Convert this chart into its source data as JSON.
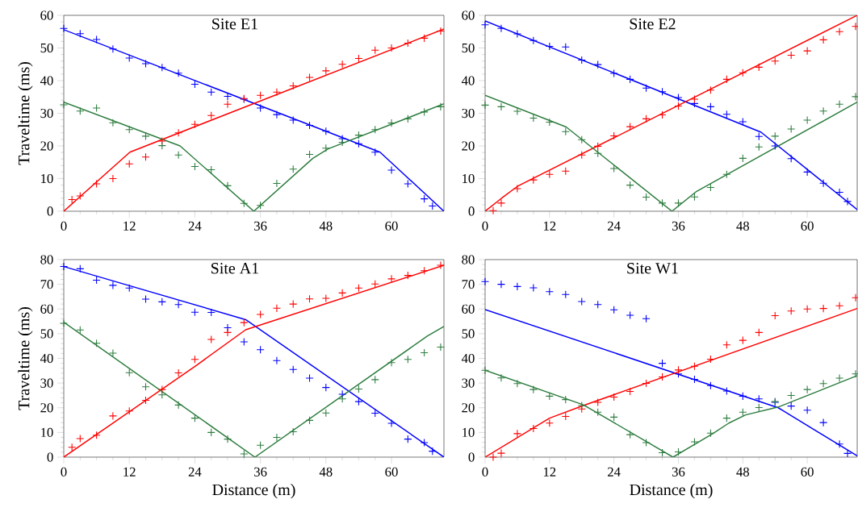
{
  "chart_data": [
    {
      "type": "line",
      "title": "Site E1",
      "ylabel": "Traveltime (ms)",
      "xlim": [
        0,
        69.6
      ],
      "ylim": [
        0,
        60
      ],
      "xticks": [
        0,
        12,
        24,
        36,
        48,
        60
      ],
      "yticks": [
        0,
        10,
        20,
        30,
        40,
        50,
        60
      ],
      "grid": false,
      "series": [
        {
          "color": "#0000ff",
          "x": [
            0,
            57.9,
            69.6
          ],
          "values": [
            55.6,
            18.1,
            0
          ]
        },
        {
          "color": "#ff0000",
          "x": [
            0,
            12.1,
            69.6
          ],
          "values": [
            0,
            18.1,
            55.8
          ]
        },
        {
          "color": "#2e7d3f",
          "x": [
            0,
            21.3,
            34.8,
            45.6,
            48.4,
            69.6
          ],
          "values": [
            33.4,
            20,
            0,
            16.2,
            19.1,
            32.9
          ]
        },
        {
          "type": "scatter",
          "marker": "cross",
          "color": "#0000ff",
          "x": [
            0,
            3,
            6,
            9,
            12,
            15,
            18,
            21,
            24,
            27,
            30,
            33,
            36,
            39,
            42,
            45,
            48,
            51,
            54,
            57,
            60,
            63,
            66,
            67.5
          ],
          "values": [
            56,
            54.4,
            52.6,
            49.7,
            46.9,
            45.2,
            44,
            42.3,
            38.9,
            36.5,
            35.2,
            34.3,
            31.6,
            29.6,
            27.9,
            26.3,
            24.5,
            22.2,
            20.7,
            18.1,
            12.6,
            8.4,
            3.8,
            1.6
          ]
        },
        {
          "type": "scatter",
          "marker": "cross",
          "color": "#ff0000",
          "x": [
            1.5,
            3,
            6,
            9,
            12,
            15,
            18,
            21,
            24,
            27,
            30,
            33,
            36,
            39,
            42,
            45,
            48,
            51,
            54,
            57,
            60,
            63,
            66,
            69
          ],
          "values": [
            3.6,
            4.7,
            8.4,
            10,
            14.5,
            16.6,
            21.5,
            24,
            26.6,
            29.3,
            32.8,
            34.5,
            35.5,
            36.5,
            38.4,
            41,
            43,
            45,
            46.8,
            49.3,
            50,
            51.5,
            53,
            55.2
          ]
        },
        {
          "type": "scatter",
          "marker": "cross",
          "color": "#2e7d3f",
          "x": [
            0,
            3,
            6,
            9,
            12,
            15,
            18,
            21,
            24,
            27,
            30,
            33,
            36,
            39,
            42,
            45,
            48,
            51,
            54,
            57,
            60,
            63,
            66,
            69
          ],
          "values": [
            32.6,
            30.7,
            31.6,
            27.1,
            25,
            23,
            20.1,
            17.2,
            13.7,
            12.7,
            7.8,
            2.4,
            1.8,
            8.5,
            12.9,
            17.4,
            19.3,
            21.1,
            23.3,
            25,
            27,
            28.3,
            30.4,
            32
          ]
        }
      ]
    },
    {
      "type": "line",
      "title": "Site E2",
      "xlim": [
        0,
        69.3
      ],
      "ylim": [
        0,
        60
      ],
      "xticks": [
        0,
        12,
        24,
        36,
        48,
        60
      ],
      "yticks": [
        0,
        10,
        20,
        30,
        40,
        50,
        60
      ],
      "grid": false,
      "series": [
        {
          "color": "#0000ff",
          "x": [
            0,
            51.4,
            69.3
          ],
          "values": [
            58.3,
            24.2,
            0.5
          ]
        },
        {
          "color": "#ff0000",
          "x": [
            0,
            3,
            6,
            69.3
          ],
          "values": [
            0,
            3.9,
            7.6,
            60
          ]
        },
        {
          "color": "#2e7d3f",
          "x": [
            0,
            15.1,
            34.8,
            39.4,
            69.3
          ],
          "values": [
            35.5,
            25.8,
            0,
            6.1,
            33.4
          ]
        },
        {
          "type": "scatter",
          "marker": "cross",
          "color": "#0000ff",
          "x": [
            0,
            3,
            6,
            9,
            12,
            15,
            18,
            21,
            24,
            27,
            30,
            33,
            36,
            39,
            42,
            45,
            48,
            51,
            54,
            57,
            60,
            63,
            66,
            67.5
          ],
          "values": [
            57.1,
            56,
            54.3,
            52.3,
            50.5,
            50.3,
            46.3,
            44.9,
            42.2,
            40.4,
            37.7,
            36.6,
            34.8,
            33,
            32,
            29.7,
            27.4,
            22.9,
            20,
            16.1,
            12,
            8.6,
            5.8,
            3
          ]
        },
        {
          "type": "scatter",
          "marker": "cross",
          "color": "#ff0000",
          "x": [
            1.5,
            3,
            6,
            9,
            12,
            15,
            18,
            21,
            24,
            27,
            30,
            33,
            36,
            39,
            42,
            45,
            48,
            51,
            54,
            57,
            60,
            63,
            66,
            69
          ],
          "values": [
            0.2,
            2.5,
            6.9,
            9.6,
            11.3,
            12.3,
            17.2,
            19.9,
            23.1,
            25.9,
            28.3,
            29.5,
            32.2,
            34.3,
            37.1,
            40.4,
            42.4,
            44.1,
            46,
            47.8,
            49.1,
            52.5,
            55,
            56.6
          ]
        },
        {
          "type": "scatter",
          "marker": "cross",
          "color": "#2e7d3f",
          "x": [
            0,
            3,
            6,
            9,
            12,
            15,
            18,
            21,
            24,
            27,
            30,
            33,
            36,
            39,
            42,
            45,
            48,
            51,
            54,
            57,
            60,
            63,
            66,
            69
          ],
          "values": [
            32.5,
            32,
            30.6,
            28.5,
            27.3,
            24.4,
            21.9,
            17.7,
            13.1,
            8,
            4.3,
            2.5,
            2.5,
            4.4,
            7.3,
            11.3,
            16.2,
            19.7,
            23,
            25.2,
            27.9,
            30.7,
            32.8,
            35.1
          ]
        }
      ]
    },
    {
      "type": "line",
      "title": "Site A1",
      "xlabel": "Distance (m)",
      "ylabel": "Traveltime (ms)",
      "xlim": [
        0,
        69.6
      ],
      "ylim": [
        0,
        80
      ],
      "xticks": [
        0,
        12,
        24,
        36,
        48,
        60
      ],
      "yticks": [
        0,
        10,
        20,
        30,
        40,
        50,
        60,
        70,
        80
      ],
      "grid": false,
      "series": [
        {
          "color": "#0000ff",
          "x": [
            0,
            33.3,
            69.6
          ],
          "values": [
            77.2,
            55.7,
            0
          ]
        },
        {
          "color": "#ff0000",
          "x": [
            0,
            24.3,
            33.3,
            69.6
          ],
          "values": [
            0,
            37.2,
            51.6,
            77.7
          ]
        },
        {
          "color": "#2e7d3f",
          "x": [
            0,
            35,
            66.6,
            69.6
          ],
          "values": [
            54.7,
            0,
            49.1,
            52.9
          ]
        },
        {
          "type": "scatter",
          "marker": "cross",
          "color": "#0000ff",
          "x": [
            0,
            3,
            6,
            9,
            12,
            15,
            18,
            21,
            24,
            27,
            30,
            33,
            36,
            39,
            42,
            45,
            48,
            51,
            54,
            57,
            60,
            63,
            66,
            67.5
          ],
          "values": [
            77.2,
            76.3,
            71.7,
            69.6,
            68.5,
            64,
            62.9,
            61.8,
            58.7,
            58.6,
            52.4,
            46.7,
            43.5,
            39.1,
            35.5,
            32,
            28.2,
            25.5,
            22.5,
            17.8,
            13.7,
            7.3,
            5.9,
            2.4
          ]
        },
        {
          "type": "scatter",
          "marker": "cross",
          "color": "#ff0000",
          "x": [
            1.5,
            3,
            6,
            9,
            12,
            15,
            18,
            21,
            24,
            27,
            30,
            33,
            36,
            39,
            42,
            45,
            48,
            51,
            54,
            57,
            60,
            63,
            66,
            69
          ],
          "values": [
            4,
            7.5,
            8.9,
            16.7,
            18.7,
            23,
            27.4,
            34.1,
            39.6,
            47.7,
            50.5,
            54.5,
            57.8,
            60.3,
            62,
            64.1,
            64.3,
            66.5,
            68.5,
            70.1,
            72.2,
            73.6,
            75.5,
            77.7
          ]
        },
        {
          "type": "scatter",
          "marker": "cross",
          "color": "#2e7d3f",
          "x": [
            0,
            3,
            6,
            9,
            12,
            15,
            18,
            21,
            24,
            27,
            30,
            33,
            36,
            39,
            42,
            45,
            48,
            51,
            54,
            57,
            60,
            63,
            66,
            69
          ],
          "values": [
            54.2,
            51.5,
            46.1,
            42.1,
            34.2,
            28.5,
            25.2,
            21.1,
            15.8,
            10,
            7.3,
            1.3,
            4.8,
            8,
            10.3,
            14.9,
            17.9,
            23.6,
            27.6,
            31.4,
            38.3,
            39.6,
            42.3,
            44.6
          ]
        }
      ]
    },
    {
      "type": "line",
      "title": "Site W1",
      "xlabel": "Distance (m)",
      "xlim": [
        0,
        69.3
      ],
      "ylim": [
        0,
        80
      ],
      "xticks": [
        0,
        12,
        24,
        36,
        48,
        60
      ],
      "yticks": [
        0,
        10,
        20,
        30,
        40,
        50,
        60,
        70,
        80
      ],
      "grid": false,
      "series": [
        {
          "color": "#0000ff",
          "x": [
            0,
            54.6,
            69.3
          ],
          "values": [
            59.8,
            20,
            0.5
          ]
        },
        {
          "color": "#ff0000",
          "x": [
            0,
            12,
            18.3,
            69.3
          ],
          "values": [
            0,
            15.8,
            20.9,
            60.2
          ]
        },
        {
          "color": "#2e7d3f",
          "x": [
            0,
            18.3,
            35,
            42.4,
            45.4,
            48.5,
            54.6,
            69.3
          ],
          "values": [
            35.2,
            21.2,
            0,
            9.5,
            13.8,
            17.1,
            20.3,
            33
          ]
        },
        {
          "type": "scatter",
          "marker": "cross",
          "color": "#0000ff",
          "x": [
            0,
            3,
            6,
            9,
            12,
            15,
            18,
            21,
            24,
            27,
            30,
            33,
            36,
            39,
            42,
            45,
            48,
            51,
            54,
            57,
            60,
            63,
            66,
            67.5
          ],
          "values": [
            71.1,
            70,
            69.1,
            68.6,
            67,
            65.9,
            63,
            61.8,
            59.7,
            57.5,
            56.1,
            38,
            33.7,
            31.5,
            29,
            26.8,
            24.7,
            23.6,
            22.2,
            20.7,
            19,
            14,
            5.3,
            1.5
          ]
        },
        {
          "type": "scatter",
          "marker": "cross",
          "color": "#ff0000",
          "x": [
            1.5,
            3,
            6,
            9,
            12,
            15,
            18,
            21,
            24,
            27,
            30,
            33,
            36,
            39,
            42,
            45,
            48,
            51,
            54,
            57,
            60,
            63,
            66,
            69
          ],
          "values": [
            0,
            1.6,
            9.5,
            11.6,
            13.8,
            16.5,
            19.5,
            22.2,
            24.3,
            26.6,
            29.9,
            32.5,
            35.3,
            36.8,
            39.7,
            45.5,
            47.3,
            50.5,
            57.3,
            59.2,
            60,
            60.2,
            61.3,
            64.6
          ]
        },
        {
          "type": "scatter",
          "marker": "cross",
          "color": "#2e7d3f",
          "x": [
            0,
            3,
            6,
            9,
            12,
            15,
            18,
            21,
            24,
            27,
            30,
            33,
            36,
            39,
            42,
            45,
            48,
            51,
            54,
            57,
            60,
            63,
            66,
            69
          ],
          "values": [
            35.2,
            32.1,
            29.8,
            27.4,
            24.7,
            23.3,
            20.9,
            18.2,
            16.2,
            9.1,
            5.9,
            1.8,
            2.1,
            6.2,
            9.7,
            15.8,
            18.2,
            20.1,
            22.5,
            25,
            27.4,
            29.8,
            32,
            33.7
          ]
        }
      ]
    }
  ]
}
